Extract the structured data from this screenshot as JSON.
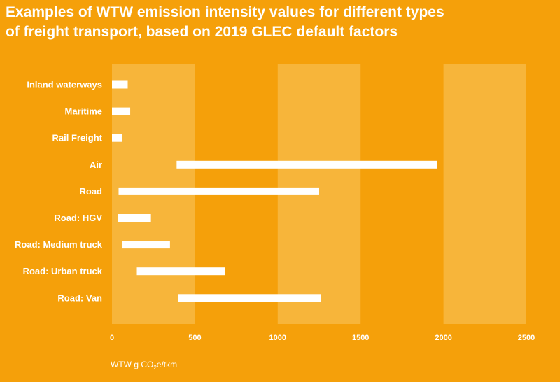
{
  "title": {
    "line1": "Examples of WTW emission intensity values for different types",
    "line2": "of freight transport, based on 2019 GLEC default factors"
  },
  "chart_data": {
    "type": "bar",
    "orientation": "horizontal-range",
    "title": "Examples of WTW emission intensity values for different types of freight transport, based on 2019 GLEC default factors",
    "xlabel": {
      "pre": "WTW g CO",
      "sub": "2",
      "post": "e/tkm"
    },
    "xlim": [
      0,
      2500
    ],
    "xticks": [
      0,
      500,
      1000,
      1500,
      2000,
      2500
    ],
    "alternating_bands": true,
    "categories": [
      "Inland waterways",
      "Maritime",
      "Rail Freight",
      "Air",
      "Road",
      "Road: HGV",
      "Road: Medium truck",
      "Road: Urban truck",
      "Road: Van"
    ],
    "ranges": [
      [
        0,
        95
      ],
      [
        0,
        110
      ],
      [
        0,
        60
      ],
      [
        390,
        1960
      ],
      [
        40,
        1250
      ],
      [
        35,
        235
      ],
      [
        60,
        350
      ],
      [
        150,
        680
      ],
      [
        400,
        1260
      ]
    ]
  },
  "colors": {
    "background": "#f5a00a",
    "band": "#f7b53a",
    "bar": "#ffffff",
    "text": "#ffffff"
  }
}
